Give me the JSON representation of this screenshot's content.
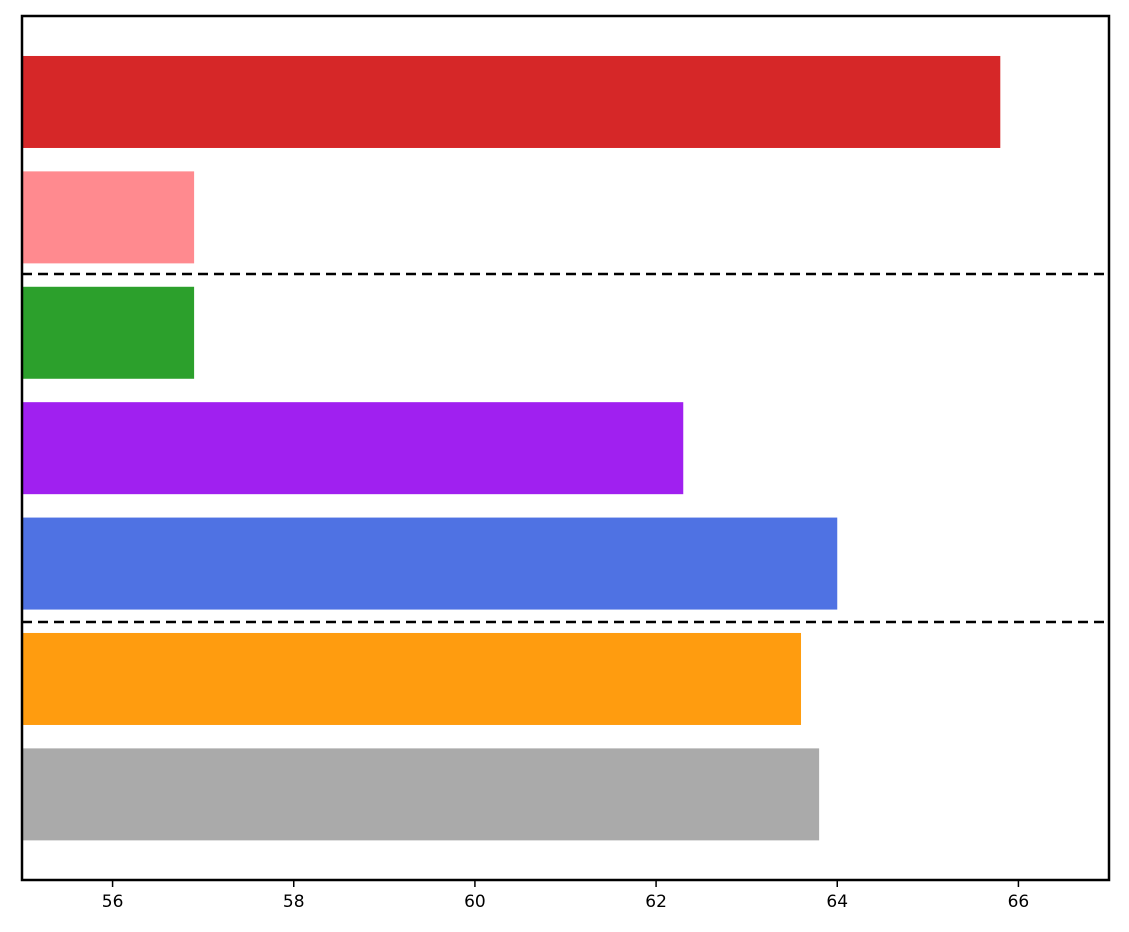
{
  "chart_data": {
    "type": "barh",
    "categories": [
      null,
      null,
      null,
      null,
      null,
      null,
      null
    ],
    "values": [
      65.8,
      56.9,
      56.9,
      62.3,
      64.0,
      63.6,
      63.8
    ],
    "colors": [
      "#d62728",
      "#ff8a8f",
      "#2ca02c",
      "#a020f0",
      "#4f72e3",
      "#ff9c0f",
      "#aaaaaa"
    ],
    "xlim": [
      55,
      67
    ],
    "xticks": [
      56,
      58,
      60,
      62,
      64,
      66
    ]
  }
}
